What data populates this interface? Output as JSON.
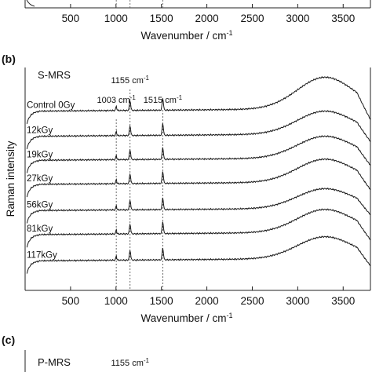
{
  "chart_data": [
    {
      "panel": "",
      "type": "line",
      "title": "",
      "xlabel_main": "Wavenumber / cm",
      "xlabel_sup": "-1",
      "ylabel": "",
      "xlim": [
        0,
        3800
      ],
      "xticks": [
        500,
        1000,
        1500,
        2000,
        2500,
        3000,
        3500
      ],
      "peaks": [
        1003,
        1155,
        1515
      ],
      "series": []
    },
    {
      "panel": "(b)",
      "type": "line",
      "title": "S-MRS",
      "xlabel_main": "Wavenumber / cm",
      "xlabel_sup": "-1",
      "ylabel": "Raman intensity",
      "xlim": [
        0,
        3800
      ],
      "xticks": [
        500,
        1000,
        1500,
        2000,
        2500,
        3000,
        3500
      ],
      "peak_labels": [
        {
          "text": "1003 cm",
          "sup": "-1",
          "x": 1003
        },
        {
          "text": "1155 cm",
          "sup": "-1",
          "x": 1155
        },
        {
          "text": "1515 cm",
          "sup": "-1",
          "x": 1515
        }
      ],
      "peaks": [
        1003,
        1155,
        1515
      ],
      "series": [
        {
          "name": "Control 0Gy",
          "baseline": 8.2,
          "hump": 1.45
        },
        {
          "name": "12kGy",
          "baseline": 7.05,
          "hump": 1.05
        },
        {
          "name": "19kGy",
          "baseline": 5.95,
          "hump": 1.0
        },
        {
          "name": "27kGy",
          "baseline": 4.85,
          "hump": 1.05
        },
        {
          "name": "56kGy",
          "baseline": 3.65,
          "hump": 0.9
        },
        {
          "name": "81kGy",
          "baseline": 2.55,
          "hump": 1.05
        },
        {
          "name": "117kGy",
          "baseline": 1.35,
          "hump": 1.0
        }
      ]
    },
    {
      "panel": "(c)",
      "type": "line",
      "title": "P-MRS",
      "peak_labels": [
        {
          "text": "1155 cm",
          "sup": "-1",
          "x": 1155
        }
      ],
      "series": []
    }
  ]
}
